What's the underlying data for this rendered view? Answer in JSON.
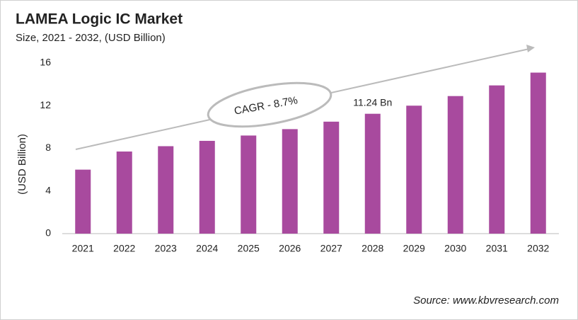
{
  "chart_data": {
    "type": "bar",
    "title": "LAMEA Logic IC Market",
    "subtitle": "Size, 2021 - 2032, (USD Billion)",
    "y_label": "(USD Billion)",
    "categories": [
      "2021",
      "2022",
      "2023",
      "2024",
      "2025",
      "2026",
      "2027",
      "2028",
      "2029",
      "2030",
      "2031",
      "2032"
    ],
    "values": [
      6.0,
      7.7,
      8.2,
      8.7,
      9.2,
      9.8,
      10.5,
      11.24,
      12.0,
      12.9,
      13.9,
      15.1
    ],
    "value_labels": [
      null,
      null,
      null,
      null,
      null,
      null,
      null,
      "11.24 Bn",
      null,
      null,
      null,
      null
    ],
    "color": "#a84a9e",
    "ylim": [
      0,
      16
    ],
    "yticks": [
      0,
      4,
      8,
      12,
      16
    ],
    "grid": false,
    "annotation": "CAGR - 8.7%",
    "source": "Source: www.kbvresearch.com"
  }
}
